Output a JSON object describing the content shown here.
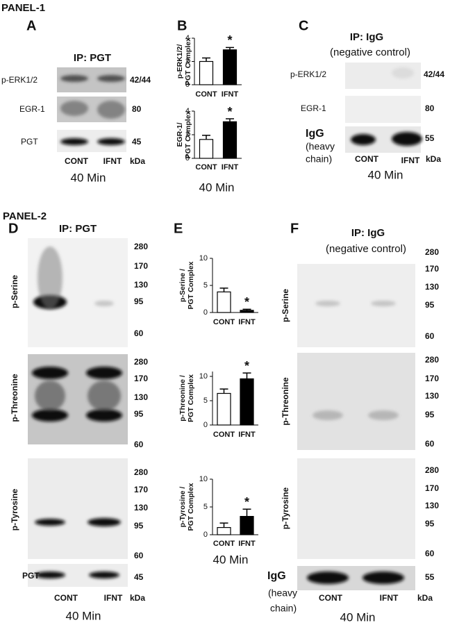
{
  "panel1": {
    "title": "PANEL-1",
    "a": {
      "letter": "A",
      "ip": "IP: PGT",
      "rows": [
        {
          "label": "p-ERK1/2",
          "kda": "42/44"
        },
        {
          "label": "EGR-1",
          "kda": "80"
        },
        {
          "label": "PGT",
          "kda": "45"
        }
      ],
      "lanes": [
        "CONT",
        "IFNT"
      ],
      "kda_unit": "kDa",
      "time": "40 Min"
    },
    "b": {
      "letter": "B",
      "time": "40 Min"
    },
    "c": {
      "letter": "C",
      "ip": "IP: IgG",
      "note": "(negative control)",
      "rows": [
        {
          "label": "p-ERK1/2",
          "kda": "42/44"
        },
        {
          "label": "EGR-1",
          "kda": "80"
        },
        {
          "label": [
            "IgG",
            "(heavy",
            "chain)"
          ],
          "kda": "55"
        }
      ],
      "lanes": [
        "CONT",
        "IFNT"
      ],
      "kda_unit": "kDa",
      "time": "40 Min"
    }
  },
  "panel2": {
    "title": "PANEL-2",
    "d": {
      "letter": "D",
      "ip": "IP: PGT",
      "rows": [
        {
          "label": "p-Serine",
          "markers": [
            "280",
            "170",
            "130",
            "95",
            "60"
          ]
        },
        {
          "label": "p-Threonine",
          "markers": [
            "280",
            "170",
            "130",
            "95",
            "60"
          ]
        },
        {
          "label": "p-Tyrosine",
          "markers": [
            "280",
            "170",
            "130",
            "95",
            "60"
          ]
        },
        {
          "label": "PGT",
          "markers": [
            "45"
          ]
        }
      ],
      "lanes": [
        "CONT",
        "IFNT"
      ],
      "kda_unit": "kDa",
      "time": "40 Min"
    },
    "e": {
      "letter": "E",
      "time": "40 Min"
    },
    "f": {
      "letter": "F",
      "ip": "IP: IgG",
      "note": "(negative control)",
      "rows": [
        {
          "label": "p-Serine",
          "markers": [
            "280",
            "170",
            "130",
            "95",
            "60"
          ]
        },
        {
          "label": "p-Threonine",
          "markers": [
            "280",
            "170",
            "130",
            "95",
            "60"
          ]
        },
        {
          "label": "p-Tyrosine",
          "markers": [
            "280",
            "170",
            "130",
            "95",
            "60"
          ]
        },
        {
          "label": [
            "IgG",
            "(heavy",
            "chain)"
          ],
          "markers": [
            "55"
          ]
        }
      ],
      "lanes": [
        "CONT",
        "IFNT"
      ],
      "kda_unit": "kDa",
      "time": "40 Min"
    }
  },
  "chart_data": [
    {
      "type": "bar",
      "ylabel": [
        "p-ERK1/2/",
        "PGT Complex"
      ],
      "categories": [
        "CONT",
        "IFNT"
      ],
      "series": [
        {
          "values": [
            2.0,
            3.0
          ],
          "errors": [
            0.3,
            0.2
          ]
        }
      ],
      "colors": [
        "#ffffff",
        "#000000"
      ],
      "ylim": [
        0,
        4
      ],
      "yticks": [
        0,
        2,
        4
      ],
      "annotation": "*"
    },
    {
      "type": "bar",
      "ylabel": [
        "EGR-1/",
        "PGT Complex"
      ],
      "categories": [
        "CONT",
        "IFNT"
      ],
      "series": [
        {
          "values": [
            1.6,
            3.1
          ],
          "errors": [
            0.35,
            0.25
          ]
        }
      ],
      "colors": [
        "#ffffff",
        "#000000"
      ],
      "ylim": [
        0,
        4
      ],
      "yticks": [
        0,
        2,
        4
      ],
      "annotation": "*"
    },
    {
      "type": "bar",
      "ylabel": [
        "p-Serine /",
        "PGT Complex"
      ],
      "categories": [
        "CONT",
        "IFNT"
      ],
      "series": [
        {
          "values": [
            3.8,
            0.4
          ],
          "errors": [
            0.7,
            0.2
          ]
        }
      ],
      "colors": [
        "#ffffff",
        "#000000"
      ],
      "ylim": [
        0,
        10
      ],
      "yticks": [
        0,
        5,
        10
      ],
      "annotation": "*"
    },
    {
      "type": "bar",
      "ylabel": [
        "p-Threonine /",
        "PGT Complex"
      ],
      "categories": [
        "CONT",
        "IFNT"
      ],
      "series": [
        {
          "values": [
            6.5,
            9.5
          ],
          "errors": [
            0.9,
            1.2
          ]
        }
      ],
      "colors": [
        "#ffffff",
        "#000000"
      ],
      "ylim": [
        0,
        11
      ],
      "yticks": [
        0,
        5,
        10
      ],
      "annotation": "*"
    },
    {
      "type": "bar",
      "ylabel": [
        "p-Tyrosine /",
        "PGT Complex"
      ],
      "categories": [
        "CONT",
        "IFNT"
      ],
      "series": [
        {
          "values": [
            1.3,
            3.3
          ],
          "errors": [
            0.8,
            1.3
          ]
        }
      ],
      "colors": [
        "#ffffff",
        "#000000"
      ],
      "ylim": [
        0,
        10
      ],
      "yticks": [
        0,
        5,
        10
      ],
      "annotation": "*"
    }
  ]
}
